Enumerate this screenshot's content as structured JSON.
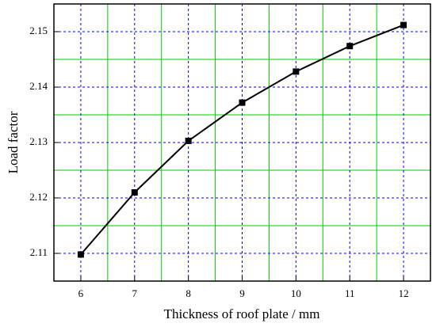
{
  "chart_data": {
    "type": "line",
    "x_label": "Thickness of roof plate / mm",
    "y_label": "Load factor",
    "x": [
      6,
      7,
      8,
      9,
      10,
      11,
      12
    ],
    "series": [
      {
        "color": "#000000",
        "values": [
          2.1098,
          2.121,
          2.1303,
          2.1372,
          2.1428,
          2.1474,
          2.1512
        ]
      }
    ],
    "xlim": [
      5.5,
      12.5
    ],
    "ylim": [
      2.105,
      2.155
    ],
    "xticks": [
      6,
      7,
      8,
      9,
      10,
      11,
      12
    ],
    "yticks": [
      {
        "value": 2.11,
        "label": "2.11"
      },
      {
        "value": 2.12,
        "label": "2.12"
      },
      {
        "value": 2.13,
        "label": "2.13"
      },
      {
        "value": 2.14,
        "label": "2.14"
      },
      {
        "value": 2.15,
        "label": "2.15"
      }
    ],
    "xminorticks": [
      6.5,
      7.5,
      8.5,
      9.5,
      10.5,
      11.5
    ],
    "yminorticks": [
      2.115,
      2.125,
      2.135,
      2.145
    ],
    "grid": true,
    "major_grid_color": "#0000ff",
    "minor_grid_color": "#00cc00"
  }
}
